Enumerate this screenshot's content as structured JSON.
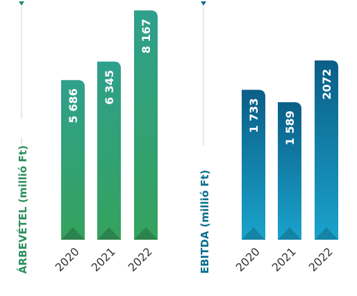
{
  "chart_data": [
    {
      "type": "bar",
      "ylabel": "ÁRBEVÉTEL (millió Ft)",
      "categories": [
        "2020",
        "2021",
        "2022"
      ],
      "values": [
        5686,
        6345,
        8167
      ],
      "value_labels": [
        "5 686",
        "6 345",
        "8 167"
      ],
      "colors": {
        "accent": "#2e8f5e",
        "gradient_top": "#2ea08a",
        "gradient_bottom": "#33995a"
      }
    },
    {
      "type": "bar",
      "ylabel": "EBITDA (millió Ft)",
      "categories": [
        "2020",
        "2021",
        "2022"
      ],
      "values": [
        1733,
        1589,
        2072
      ],
      "value_labels": [
        "1 733",
        "1 589",
        "2072"
      ],
      "colors": {
        "accent": "#0a6f8f",
        "gradient_top": "#0b5f8a",
        "gradient_bottom": "#1ba0c9"
      }
    }
  ]
}
